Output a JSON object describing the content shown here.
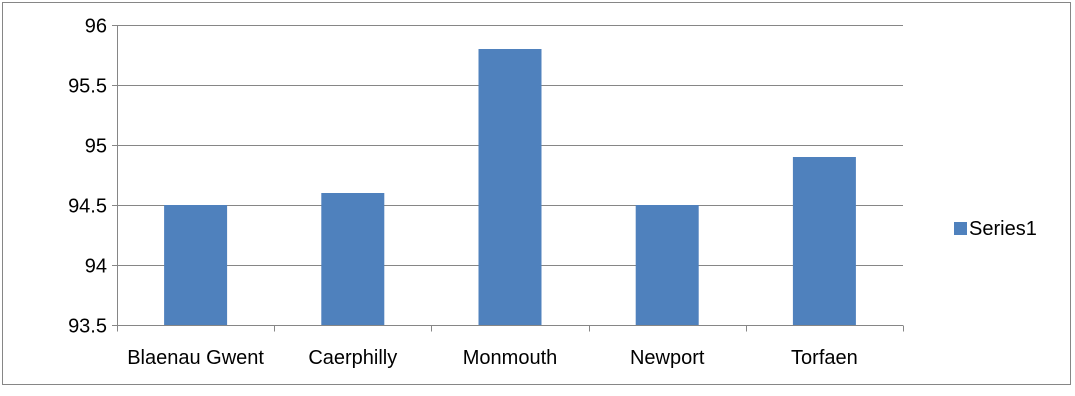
{
  "chart_data": {
    "type": "bar",
    "title": "",
    "xlabel": "",
    "ylabel": "",
    "categories": [
      "Blaenau Gwent",
      "Caerphilly",
      "Monmouth",
      "Newport",
      "Torfaen"
    ],
    "series": [
      {
        "name": "Series1",
        "values": [
          94.5,
          94.6,
          95.8,
          94.5,
          94.9
        ],
        "color": "#4F81BD"
      }
    ],
    "ylim": [
      93.5,
      96
    ],
    "yticks": [
      "93.5",
      "94",
      "94.5",
      "95",
      "95.5",
      "96"
    ],
    "grid": true,
    "legend_position": "right"
  },
  "colors": {
    "bar": "#4F81BD",
    "gridline": "#868686",
    "border": "#868686"
  }
}
